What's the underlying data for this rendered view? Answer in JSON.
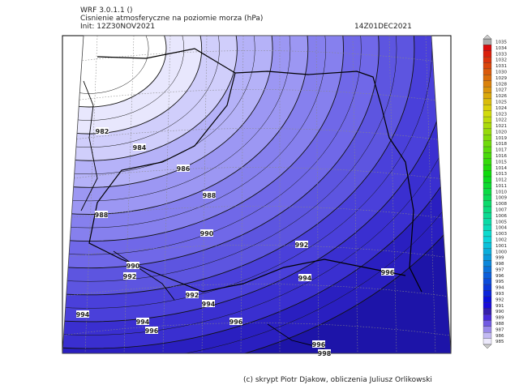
{
  "header": {
    "model": "WRF 3.0.1.1 ()",
    "title": "Cisnienie atmosferyczne na poziomie morza (hPa)",
    "init": "Init: 12Z30NOV2021",
    "valid": "14Z01DEC2021"
  },
  "colorbar": {
    "labels": [
      1035,
      1034,
      1033,
      1032,
      1031,
      1030,
      1029,
      1028,
      1027,
      1026,
      1025,
      1024,
      1023,
      1022,
      1021,
      1020,
      1019,
      1018,
      1017,
      1016,
      1015,
      1014,
      1013,
      1012,
      1011,
      1010,
      1009,
      1008,
      1007,
      1006,
      1005,
      1004,
      1003,
      1002,
      1001,
      1000,
      999,
      998,
      997,
      996,
      995,
      994,
      993,
      992,
      991,
      990,
      989,
      988,
      987,
      986,
      985
    ]
  },
  "contour_labels": [
    982,
    984,
    986,
    988,
    988,
    990,
    992,
    990,
    992,
    994,
    996,
    992,
    994,
    994,
    994,
    996,
    996,
    996,
    998
  ],
  "footer": {
    "credit": "(c) skrypt Piotr Djakow, obliczenia Juliusz Orlikowski"
  }
}
